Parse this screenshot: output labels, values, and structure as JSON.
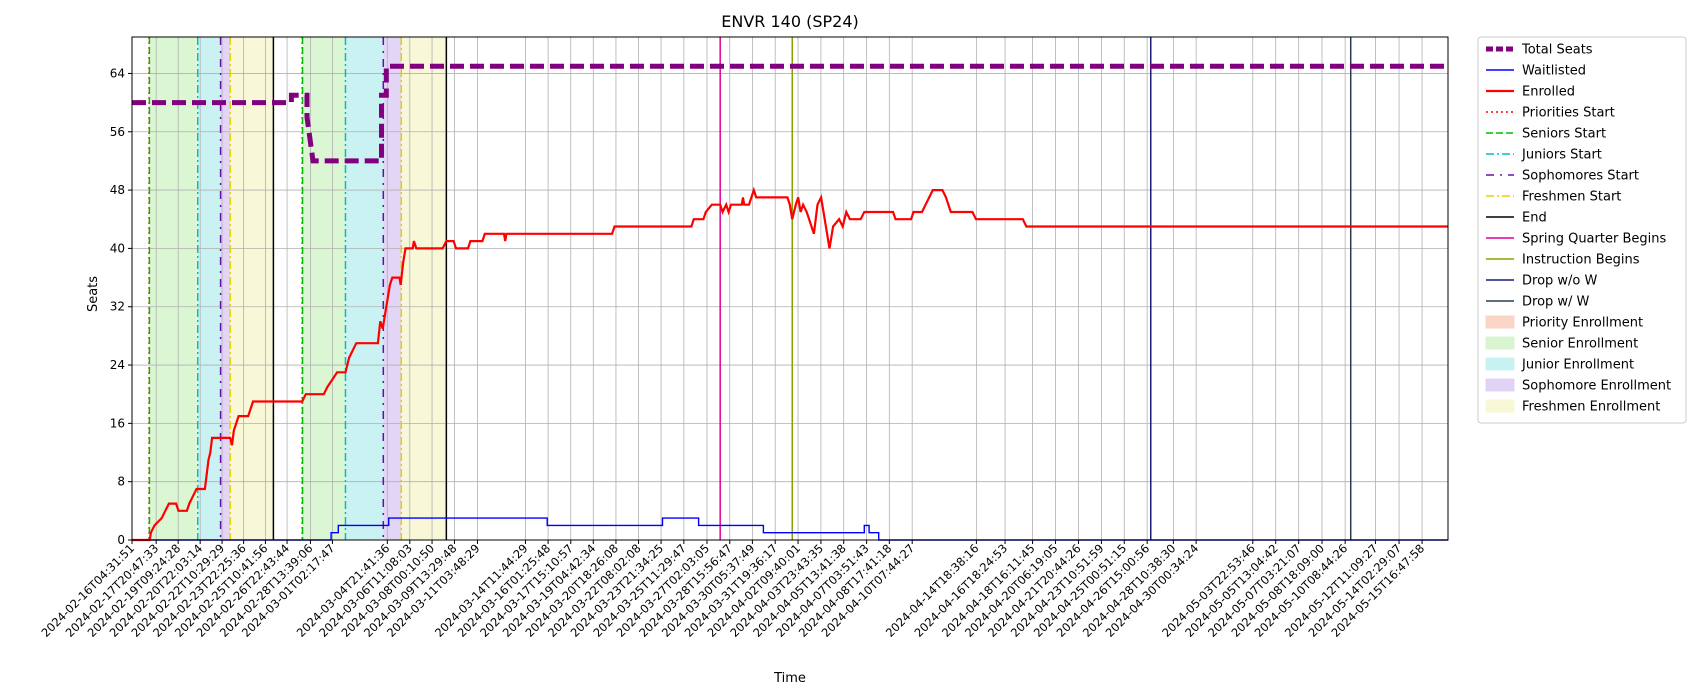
{
  "chart_data": {
    "type": "line",
    "title": "ENVR 140 (SP24)",
    "xlabel": "Time",
    "ylabel": "Seats",
    "ylim": [
      0,
      69
    ],
    "xlim": [
      "2024-02-16T04:31:51",
      "2024-05-17T12:00:00"
    ],
    "grid": true,
    "legend_placement": "outside-right-top",
    "y_ticks": [
      0,
      8,
      16,
      24,
      32,
      40,
      48,
      56,
      64
    ],
    "x_ticks": [
      "2024-02-16T04:31:51",
      "2024-02-17T20:47:33",
      "2024-02-19T09:24:28",
      "2024-02-20T22:03:14",
      "2024-02-22T10:29:29",
      "2024-02-23T22:25:36",
      "2024-02-25T10:41:56",
      "2024-02-26T22:43:44",
      "2024-02-28T13:39:06",
      "2024-03-01T02:17:47",
      "2024-03-04T21:41:36",
      "2024-03-06T11:08:03",
      "2024-03-08T00:10:50",
      "2024-03-09T13:29:48",
      "2024-03-11T03:48:29",
      "2024-03-14T11:44:29",
      "2024-03-16T01:25:48",
      "2024-03-17T15:10:57",
      "2024-03-19T04:42:34",
      "2024-03-20T18:26:08",
      "2024-03-22T08:02:08",
      "2024-03-23T21:34:25",
      "2024-03-25T11:29:47",
      "2024-03-27T02:03:05",
      "2024-03-28T15:56:47",
      "2024-03-30T05:37:49",
      "2024-03-31T19:36:17",
      "2024-04-02T09:40:01",
      "2024-04-03T23:43:35",
      "2024-04-05T13:41:38",
      "2024-04-07T03:51:43",
      "2024-04-08T17:41:18",
      "2024-04-10T07:44:27",
      "2024-04-14T18:38:16",
      "2024-04-16T18:24:53",
      "2024-04-18T16:11:45",
      "2024-04-20T06:19:05",
      "2024-04-21T20:44:26",
      "2024-04-23T10:51:59",
      "2024-04-25T00:51:15",
      "2024-04-26T15:00:56",
      "2024-04-28T10:38:30",
      "2024-04-30T00:34:24",
      "2024-05-03T22:53:46",
      "2024-05-05T13:04:42",
      "2024-05-07T03:21:07",
      "2024-05-08T18:09:00",
      "2024-05-10T08:44:26",
      "2024-05-12T11:09:27",
      "2024-05-14T02:29:07",
      "2024-05-15T16:47:58"
    ],
    "legend": [
      {
        "label": "Total Seats",
        "kind": "line",
        "color": "#800080",
        "dash": "dashed",
        "width": "thick"
      },
      {
        "label": "Waitlisted",
        "kind": "line",
        "color": "#0000ff",
        "dash": "solid",
        "width": "thin"
      },
      {
        "label": "Enrolled",
        "kind": "line",
        "color": "#ff0000",
        "dash": "solid",
        "width": "medium"
      },
      {
        "label": "Priorities Start",
        "kind": "line",
        "color": "#ff0000",
        "dash": "dotted",
        "width": "thin"
      },
      {
        "label": "Seniors Start",
        "kind": "line",
        "color": "#00bb00",
        "dash": "dashed",
        "width": "thin"
      },
      {
        "label": "Juniors Start",
        "kind": "line",
        "color": "#00bfbf",
        "dash": "dashdot",
        "width": "thin"
      },
      {
        "label": "Sophomores Start",
        "kind": "line",
        "color": "#6a0dad",
        "dash": "loosedashdot",
        "width": "thin"
      },
      {
        "label": "Freshmen Start",
        "kind": "line",
        "color": "#e0d000",
        "dash": "dashdot",
        "width": "thin"
      },
      {
        "label": "End",
        "kind": "line",
        "color": "#000000",
        "dash": "solid",
        "width": "thin"
      },
      {
        "label": "Spring Quarter Begins",
        "kind": "line",
        "color": "#e0009a",
        "dash": "solid",
        "width": "thin"
      },
      {
        "label": "Instruction Begins",
        "kind": "line",
        "color": "#8aa000",
        "dash": "solid",
        "width": "thin"
      },
      {
        "label": "Drop w/o W",
        "kind": "line",
        "color": "#1a1a7a",
        "dash": "solid",
        "width": "thin"
      },
      {
        "label": "Drop w/ W",
        "kind": "line",
        "color": "#2a3a55",
        "dash": "solid",
        "width": "thin"
      },
      {
        "label": "Priority Enrollment",
        "kind": "patch",
        "color": "#f9d5c5"
      },
      {
        "label": "Senior Enrollment",
        "kind": "patch",
        "color": "#d8f5d0"
      },
      {
        "label": "Junior Enrollment",
        "kind": "patch",
        "color": "#c8f1f2"
      },
      {
        "label": "Sophomore Enrollment",
        "kind": "patch",
        "color": "#e0d3f6"
      },
      {
        "label": "Freshmen Enrollment",
        "kind": "patch",
        "color": "#f8f8d6"
      }
    ],
    "spans": [
      {
        "type": "Senior Enrollment",
        "start": "2024-02-17T09:00:00",
        "end": "2024-02-20T18:00:00",
        "color": "#d8f5d0"
      },
      {
        "type": "Junior Enrollment",
        "start": "2024-02-20T18:00:00",
        "end": "2024-02-22T08:00:00",
        "color": "#c8f1f2"
      },
      {
        "type": "Sophomore Enrollment",
        "start": "2024-02-22T08:00:00",
        "end": "2024-02-23T00:00:00",
        "color": "#e0d3f6"
      },
      {
        "type": "Freshmen Enrollment",
        "start": "2024-02-23T00:00:00",
        "end": "2024-02-26T00:00:00",
        "color": "#f8f8d6"
      },
      {
        "type": "Senior Enrollment",
        "start": "2024-02-28T00:00:00",
        "end": "2024-03-02T00:00:00",
        "color": "#d8f5d0"
      },
      {
        "type": "Junior Enrollment",
        "start": "2024-03-02T00:00:00",
        "end": "2024-03-04T15:00:00",
        "color": "#c8f1f2"
      },
      {
        "type": "Sophomore Enrollment",
        "start": "2024-03-04T15:00:00",
        "end": "2024-03-05T21:00:00",
        "color": "#e0d3f6"
      },
      {
        "type": "Freshmen Enrollment",
        "start": "2024-03-05T21:00:00",
        "end": "2024-03-09T00:00:00",
        "color": "#f8f8d6"
      }
    ],
    "vlines": [
      {
        "type": "Priorities Start",
        "t": "2024-02-17T09:00:00"
      },
      {
        "type": "Seniors Start",
        "t": "2024-02-17T09:30:00"
      },
      {
        "type": "Juniors Start",
        "t": "2024-02-20T18:00:00"
      },
      {
        "type": "Sophomores Start",
        "t": "2024-02-22T08:00:00"
      },
      {
        "type": "Freshmen Start",
        "t": "2024-02-23T00:00:00"
      },
      {
        "type": "End",
        "t": "2024-02-26T00:00:00"
      },
      {
        "type": "Priorities Start",
        "t": "2024-02-28T00:00:00"
      },
      {
        "type": "Seniors Start",
        "t": "2024-02-28T00:30:00"
      },
      {
        "type": "Juniors Start",
        "t": "2024-03-02T00:00:00"
      },
      {
        "type": "Sophomores Start",
        "t": "2024-03-04T15:00:00"
      },
      {
        "type": "Freshmen Start",
        "t": "2024-03-05T21:00:00"
      },
      {
        "type": "End",
        "t": "2024-03-09T00:00:00"
      },
      {
        "type": "Spring Quarter Begins",
        "t": "2024-03-28T00:00:00"
      },
      {
        "type": "Instruction Begins",
        "t": "2024-04-02T00:00:00"
      },
      {
        "type": "Drop w/o W",
        "t": "2024-04-26T21:00:00"
      },
      {
        "type": "Drop w/ W",
        "t": "2024-05-10T18:00:00"
      }
    ],
    "series": [
      {
        "name": "Total Seats",
        "values": [
          [
            "2024-02-16T04:31:51",
            60
          ],
          [
            "2024-02-27T06:00:00",
            60
          ],
          [
            "2024-02-27T06:00:00",
            61
          ],
          [
            "2024-02-28T08:00:00",
            61
          ],
          [
            "2024-02-28T08:00:00",
            58
          ],
          [
            "2024-02-28T18:00:00",
            52
          ],
          [
            "2024-03-04T12:00:00",
            52
          ],
          [
            "2024-03-04T12:00:00",
            61
          ],
          [
            "2024-03-04T20:00:00",
            61
          ],
          [
            "2024-03-04T20:00:00",
            65
          ],
          [
            "2024-05-17T12:00:00",
            65
          ]
        ]
      },
      {
        "name": "Waitlisted",
        "values": [
          [
            "2024-02-16T04:31:51",
            0
          ],
          [
            "2024-03-01T00:00:00",
            0
          ],
          [
            "2024-03-01T00:00:00",
            1
          ],
          [
            "2024-03-01T12:00:00",
            1
          ],
          [
            "2024-03-01T12:00:00",
            2
          ],
          [
            "2024-03-05T00:00:00",
            2
          ],
          [
            "2024-03-05T00:00:00",
            3
          ],
          [
            "2024-03-16T00:00:00",
            3
          ],
          [
            "2024-03-16T00:00:00",
            2
          ],
          [
            "2024-03-24T00:00:00",
            2
          ],
          [
            "2024-03-24T00:00:00",
            3
          ],
          [
            "2024-03-26T12:00:00",
            3
          ],
          [
            "2024-03-26T12:00:00",
            2
          ],
          [
            "2024-03-31T00:00:00",
            2
          ],
          [
            "2024-03-31T00:00:00",
            1
          ],
          [
            "2024-04-07T00:00:00",
            1
          ],
          [
            "2024-04-07T00:00:00",
            2
          ],
          [
            "2024-04-07T08:00:00",
            2
          ],
          [
            "2024-04-07T08:00:00",
            1
          ],
          [
            "2024-04-08T00:00:00",
            1
          ],
          [
            "2024-04-08T00:00:00",
            0
          ],
          [
            "2024-05-17T12:00:00",
            0
          ]
        ]
      },
      {
        "name": "Enrolled",
        "values": [
          [
            "2024-02-16T04:31:51",
            0
          ],
          [
            "2024-02-17T10:00:00",
            0
          ],
          [
            "2024-02-17T12:00:00",
            1
          ],
          [
            "2024-02-17T18:00:00",
            2
          ],
          [
            "2024-02-18T06:00:00",
            3
          ],
          [
            "2024-02-18T12:00:00",
            4
          ],
          [
            "2024-02-18T18:00:00",
            5
          ],
          [
            "2024-02-19T06:00:00",
            5
          ],
          [
            "2024-02-19T10:00:00",
            4
          ],
          [
            "2024-02-20T00:00:00",
            4
          ],
          [
            "2024-02-20T04:00:00",
            5
          ],
          [
            "2024-02-20T10:00:00",
            6
          ],
          [
            "2024-02-20T16:00:00",
            7
          ],
          [
            "2024-02-21T06:00:00",
            7
          ],
          [
            "2024-02-21T09:00:00",
            9
          ],
          [
            "2024-02-21T12:00:00",
            11
          ],
          [
            "2024-02-21T15:00:00",
            12
          ],
          [
            "2024-02-21T18:00:00",
            14
          ],
          [
            "2024-02-23T00:00:00",
            14
          ],
          [
            "2024-02-23T03:00:00",
            13
          ],
          [
            "2024-02-23T06:00:00",
            15
          ],
          [
            "2024-02-23T10:00:00",
            16
          ],
          [
            "2024-02-23T14:00:00",
            17
          ],
          [
            "2024-02-24T06:00:00",
            17
          ],
          [
            "2024-02-24T10:00:00",
            18
          ],
          [
            "2024-02-24T14:00:00",
            19
          ],
          [
            "2024-02-28T00:00:00",
            19
          ],
          [
            "2024-02-28T06:00:00",
            20
          ],
          [
            "2024-02-29T12:00:00",
            20
          ],
          [
            "2024-02-29T18:00:00",
            21
          ],
          [
            "2024-03-01T02:00:00",
            22
          ],
          [
            "2024-03-01T10:00:00",
            23
          ],
          [
            "2024-03-02T00:00:00",
            23
          ],
          [
            "2024-03-02T06:00:00",
            25
          ],
          [
            "2024-03-02T12:00:00",
            26
          ],
          [
            "2024-03-02T18:00:00",
            27
          ],
          [
            "2024-03-04T06:00:00",
            27
          ],
          [
            "2024-03-04T10:00:00",
            30
          ],
          [
            "2024-03-04T14:00:00",
            29
          ],
          [
            "2024-03-04T18:00:00",
            31
          ],
          [
            "2024-03-04T22:00:00",
            33
          ],
          [
            "2024-03-05T02:00:00",
            35
          ],
          [
            "2024-03-05T06:00:00",
            36
          ],
          [
            "2024-03-05T18:00:00",
            36
          ],
          [
            "2024-03-05T20:00:00",
            35
          ],
          [
            "2024-03-06T00:00:00",
            38
          ],
          [
            "2024-03-06T04:00:00",
            40
          ],
          [
            "2024-03-06T16:00:00",
            40
          ],
          [
            "2024-03-06T18:00:00",
            41
          ],
          [
            "2024-03-06T22:00:00",
            40
          ],
          [
            "2024-03-08T18:00:00",
            40
          ],
          [
            "2024-03-09T00:00:00",
            41
          ],
          [
            "2024-03-09T12:00:00",
            41
          ],
          [
            "2024-03-09T16:00:00",
            40
          ],
          [
            "2024-03-10T12:00:00",
            40
          ],
          [
            "2024-03-10T16:00:00",
            41
          ],
          [
            "2024-03-11T12:00:00",
            41
          ],
          [
            "2024-03-11T16:00:00",
            42
          ],
          [
            "2024-03-13T00:00:00",
            42
          ],
          [
            "2024-03-13T02:00:00",
            41
          ],
          [
            "2024-03-13T04:00:00",
            42
          ],
          [
            "2024-03-20T12:00:00",
            42
          ],
          [
            "2024-03-20T16:00:00",
            43
          ],
          [
            "2024-03-23T18:00:00",
            43
          ],
          [
            "2024-03-26T00:00:00",
            43
          ],
          [
            "2024-03-26T04:00:00",
            44
          ],
          [
            "2024-03-26T20:00:00",
            44
          ],
          [
            "2024-03-27T00:00:00",
            45
          ],
          [
            "2024-03-27T10:00:00",
            46
          ],
          [
            "2024-03-28T00:00:00",
            46
          ],
          [
            "2024-03-28T04:00:00",
            45
          ],
          [
            "2024-03-28T10:00:00",
            46
          ],
          [
            "2024-03-28T14:00:00",
            45
          ],
          [
            "2024-03-28T18:00:00",
            46
          ],
          [
            "2024-03-29T12:00:00",
            46
          ],
          [
            "2024-03-29T14:00:00",
            47
          ],
          [
            "2024-03-29T16:00:00",
            46
          ],
          [
            "2024-03-30T00:00:00",
            46
          ],
          [
            "2024-03-30T04:00:00",
            47
          ],
          [
            "2024-03-30T08:00:00",
            48
          ],
          [
            "2024-03-30T12:00:00",
            47
          ],
          [
            "2024-04-01T16:00:00",
            47
          ],
          [
            "2024-04-01T20:00:00",
            46
          ],
          [
            "2024-04-02T00:00:00",
            44
          ],
          [
            "2024-04-02T06:00:00",
            46
          ],
          [
            "2024-04-02T10:00:00",
            47
          ],
          [
            "2024-04-02T14:00:00",
            45
          ],
          [
            "2024-04-02T18:00:00",
            46
          ],
          [
            "2024-04-03T00:00:00",
            45
          ],
          [
            "2024-04-03T04:00:00",
            44
          ],
          [
            "2024-04-03T08:00:00",
            43
          ],
          [
            "2024-04-03T12:00:00",
            42
          ],
          [
            "2024-04-03T18:00:00",
            46
          ],
          [
            "2024-04-04T00:00:00",
            47
          ],
          [
            "2024-04-04T06:00:00",
            44
          ],
          [
            "2024-04-04T10:00:00",
            42
          ],
          [
            "2024-04-04T14:00:00",
            40
          ],
          [
            "2024-04-04T20:00:00",
            43
          ],
          [
            "2024-04-05T06:00:00",
            44
          ],
          [
            "2024-04-05T12:00:00",
            43
          ],
          [
            "2024-04-05T18:00:00",
            45
          ],
          [
            "2024-04-06T00:00:00",
            44
          ],
          [
            "2024-04-06T18:00:00",
            44
          ],
          [
            "2024-04-07T00:00:00",
            45
          ],
          [
            "2024-04-09T00:00:00",
            45
          ],
          [
            "2024-04-09T04:00:00",
            44
          ],
          [
            "2024-04-10T06:00:00",
            44
          ],
          [
            "2024-04-10T10:00:00",
            45
          ],
          [
            "2024-04-11T00:00:00",
            45
          ],
          [
            "2024-04-11T06:00:00",
            46
          ],
          [
            "2024-04-11T12:00:00",
            47
          ],
          [
            "2024-04-11T18:00:00",
            48
          ],
          [
            "2024-04-12T10:00:00",
            48
          ],
          [
            "2024-04-12T16:00:00",
            47
          ],
          [
            "2024-04-13T00:00:00",
            45
          ],
          [
            "2024-04-14T12:00:00",
            45
          ],
          [
            "2024-04-14T18:00:00",
            44
          ],
          [
            "2024-04-18T00:00:00",
            44
          ],
          [
            "2024-04-18T06:00:00",
            43
          ],
          [
            "2024-05-17T12:00:00",
            43
          ]
        ]
      }
    ]
  }
}
